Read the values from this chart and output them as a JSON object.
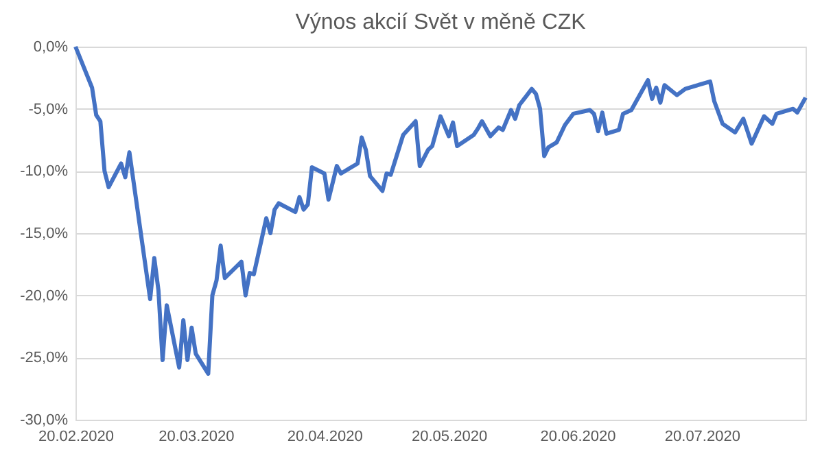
{
  "chart_data": {
    "type": "line",
    "title": "Výnos akcií Svět v měně CZK",
    "x": [
      "2020-02-20",
      "2020-02-24",
      "2020-02-25",
      "2020-02-26",
      "2020-02-27",
      "2020-02-28",
      "2020-03-02",
      "2020-03-03",
      "2020-03-04",
      "2020-03-09",
      "2020-03-10",
      "2020-03-11",
      "2020-03-12",
      "2020-03-13",
      "2020-03-16",
      "2020-03-17",
      "2020-03-18",
      "2020-03-19",
      "2020-03-20",
      "2020-03-23",
      "2020-03-24",
      "2020-03-25",
      "2020-03-26",
      "2020-03-27",
      "2020-03-31",
      "2020-04-01",
      "2020-04-02",
      "2020-04-03",
      "2020-04-06",
      "2020-04-07",
      "2020-04-08",
      "2020-04-09",
      "2020-04-13",
      "2020-04-14",
      "2020-04-15",
      "2020-04-16",
      "2020-04-17",
      "2020-04-20",
      "2020-04-21",
      "2020-04-23",
      "2020-04-24",
      "2020-04-28",
      "2020-04-29",
      "2020-04-30",
      "2020-05-01",
      "2020-05-04",
      "2020-05-05",
      "2020-05-06",
      "2020-05-09",
      "2020-05-12",
      "2020-05-13",
      "2020-05-15",
      "2020-05-16",
      "2020-05-18",
      "2020-05-20",
      "2020-05-21",
      "2020-05-22",
      "2020-05-26",
      "2020-05-27",
      "2020-05-28",
      "2020-05-30",
      "2020-06-01",
      "2020-06-02",
      "2020-06-04",
      "2020-06-05",
      "2020-06-06",
      "2020-06-09",
      "2020-06-10",
      "2020-06-11",
      "2020-06-12",
      "2020-06-13",
      "2020-06-15",
      "2020-06-17",
      "2020-06-19",
      "2020-06-23",
      "2020-06-24",
      "2020-06-25",
      "2020-06-26",
      "2020-06-27",
      "2020-06-30",
      "2020-07-01",
      "2020-07-03",
      "2020-07-07",
      "2020-07-08",
      "2020-07-09",
      "2020-07-10",
      "2020-07-11",
      "2020-07-14",
      "2020-07-16",
      "2020-07-22",
      "2020-07-23",
      "2020-07-25",
      "2020-07-28",
      "2020-07-30",
      "2020-08-01",
      "2020-08-04",
      "2020-08-06",
      "2020-08-07",
      "2020-08-11",
      "2020-08-12",
      "2020-08-14"
    ],
    "series": [
      {
        "color": "#4472c4",
        "values": [
          0,
          -3.3,
          -5.5,
          -6.0,
          -10.0,
          -11.3,
          -9.4,
          -10.5,
          -8.5,
          -20.3,
          -17.0,
          -19.6,
          -25.2,
          -20.8,
          -25.8,
          -22.0,
          -25.2,
          -22.6,
          -24.7,
          -26.3,
          -20.0,
          -18.8,
          -16.0,
          -18.6,
          -17.3,
          -20.0,
          -18.2,
          -18.3,
          -13.8,
          -15.0,
          -13.1,
          -12.6,
          -13.3,
          -12.1,
          -13.1,
          -12.7,
          -9.7,
          -10.2,
          -12.3,
          -9.6,
          -10.2,
          -9.4,
          -7.3,
          -8.3,
          -10.4,
          -11.6,
          -10.2,
          -10.3,
          -7.1,
          -6.0,
          -9.6,
          -8.3,
          -8.0,
          -5.6,
          -7.2,
          -6.1,
          -8.0,
          -7.1,
          -6.6,
          -6.0,
          -7.2,
          -6.5,
          -6.7,
          -5.1,
          -5.8,
          -4.7,
          -3.4,
          -3.8,
          -5.0,
          -8.8,
          -8.1,
          -7.7,
          -6.3,
          -5.4,
          -5.1,
          -5.4,
          -6.8,
          -5.3,
          -7.0,
          -6.7,
          -5.4,
          -5.1,
          -2.7,
          -4.2,
          -3.3,
          -4.5,
          -3.1,
          -3.9,
          -3.4,
          -2.8,
          -4.4,
          -6.2,
          -6.9,
          -5.8,
          -7.8,
          -5.6,
          -6.2,
          -5.4,
          -5.0,
          -5.3,
          -4.1
        ]
      }
    ],
    "xlim": [
      "2020-02-20",
      "2020-08-14"
    ],
    "xticks": [
      {
        "value": "2020-02-20",
        "label": "20.02.2020"
      },
      {
        "value": "2020-03-20",
        "label": "20.03.2020"
      },
      {
        "value": "2020-04-20",
        "label": "20.04.2020"
      },
      {
        "value": "2020-05-20",
        "label": "20.05.2020"
      },
      {
        "value": "2020-06-20",
        "label": "20.06.2020"
      },
      {
        "value": "2020-07-20",
        "label": "20.07.2020"
      }
    ],
    "ylim": [
      -30,
      0
    ],
    "yticks": [
      {
        "value": 0,
        "label": "0,0%"
      },
      {
        "value": -5,
        "label": "-5,0%"
      },
      {
        "value": -10,
        "label": "-10,0%"
      },
      {
        "value": -15,
        "label": "-15,0%"
      },
      {
        "value": -20,
        "label": "-20,0%"
      },
      {
        "value": -25,
        "label": "-25,0%"
      },
      {
        "value": -30,
        "label": "-30,0%"
      }
    ],
    "grid": "y",
    "line_style": "solid",
    "marker": "none"
  }
}
